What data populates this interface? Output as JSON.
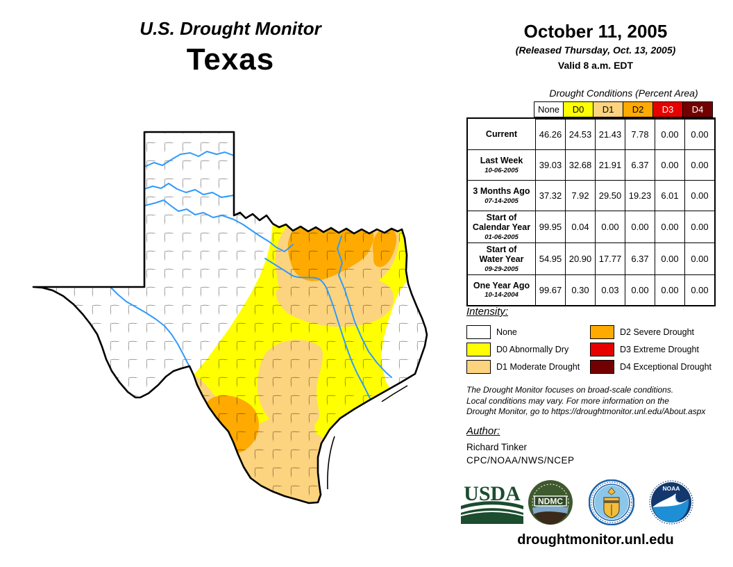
{
  "title": {
    "line1": "U.S. Drought Monitor",
    "line2": "Texas"
  },
  "date_block": {
    "date": "October 11, 2005",
    "released": "(Released Thursday, Oct. 13, 2005)",
    "valid": "Valid 8 a.m. EDT"
  },
  "table": {
    "caption": "Drought Conditions (Percent Area)",
    "columns": [
      {
        "label": "None",
        "color": "#FFFFFF",
        "text": "#000000"
      },
      {
        "label": "D0",
        "color": "#FFFF00",
        "text": "#000000"
      },
      {
        "label": "D1",
        "color": "#FCD37F",
        "text": "#000000"
      },
      {
        "label": "D2",
        "color": "#FFAA00",
        "text": "#000000"
      },
      {
        "label": "D3",
        "color": "#E60000",
        "text": "#FFFFFF"
      },
      {
        "label": "D4",
        "color": "#730000",
        "text": "#FFFFFF"
      }
    ],
    "rows": [
      {
        "label": "Current",
        "date": "",
        "values": [
          "46.26",
          "24.53",
          "21.43",
          "7.78",
          "0.00",
          "0.00"
        ]
      },
      {
        "label": "Last Week",
        "date": "10-06-2005",
        "values": [
          "39.03",
          "32.68",
          "21.91",
          "6.37",
          "0.00",
          "0.00"
        ]
      },
      {
        "label": "3 Months Ago",
        "date": "07-14-2005",
        "values": [
          "37.32",
          "7.92",
          "29.50",
          "19.23",
          "6.01",
          "0.00"
        ]
      },
      {
        "label": "Start of\nCalendar Year",
        "date": "01-06-2005",
        "values": [
          "99.95",
          "0.04",
          "0.00",
          "0.00",
          "0.00",
          "0.00"
        ]
      },
      {
        "label": "Start of\nWater Year",
        "date": "09-29-2005",
        "values": [
          "54.95",
          "20.90",
          "17.77",
          "6.37",
          "0.00",
          "0.00"
        ]
      },
      {
        "label": "One Year Ago",
        "date": "10-14-2004",
        "values": [
          "99.67",
          "0.30",
          "0.03",
          "0.00",
          "0.00",
          "0.00"
        ]
      }
    ]
  },
  "legend": {
    "title": "Intensity:",
    "items": [
      {
        "label": "None",
        "color": "#FFFFFF"
      },
      {
        "label": "D0 Abnormally Dry",
        "color": "#FFFF00"
      },
      {
        "label": "D1 Moderate Drought",
        "color": "#FCD37F"
      },
      {
        "label": "D2 Severe Drought",
        "color": "#FFAA00"
      },
      {
        "label": "D3 Extreme Drought",
        "color": "#E60000"
      },
      {
        "label": "D4 Exceptional Drought",
        "color": "#730000"
      }
    ]
  },
  "notes": {
    "disclaimer": "The Drought Monitor focuses on broad-scale conditions.\nLocal conditions may vary. For more information on the\nDrought Monitor, go to https://droughtmonitor.unl.edu/About.aspx"
  },
  "author": {
    "heading": "Author:",
    "name": "Richard Tinker",
    "org": "CPC/NOAA/NWS/NCEP"
  },
  "footer": {
    "url": "droughtmonitor.unl.edu",
    "usda_text": "USDA",
    "ndmc_text": "NDMC",
    "noaa_text": "NOAA"
  },
  "map": {
    "state": "Texas",
    "colors": {
      "none": "#FFFFFF",
      "d0": "#FFFF00",
      "d1": "#FCD37F",
      "d2": "#FFAA00",
      "d3": "#E60000",
      "d4": "#730000",
      "river": "#2E9AFE",
      "outline": "#000000"
    }
  }
}
